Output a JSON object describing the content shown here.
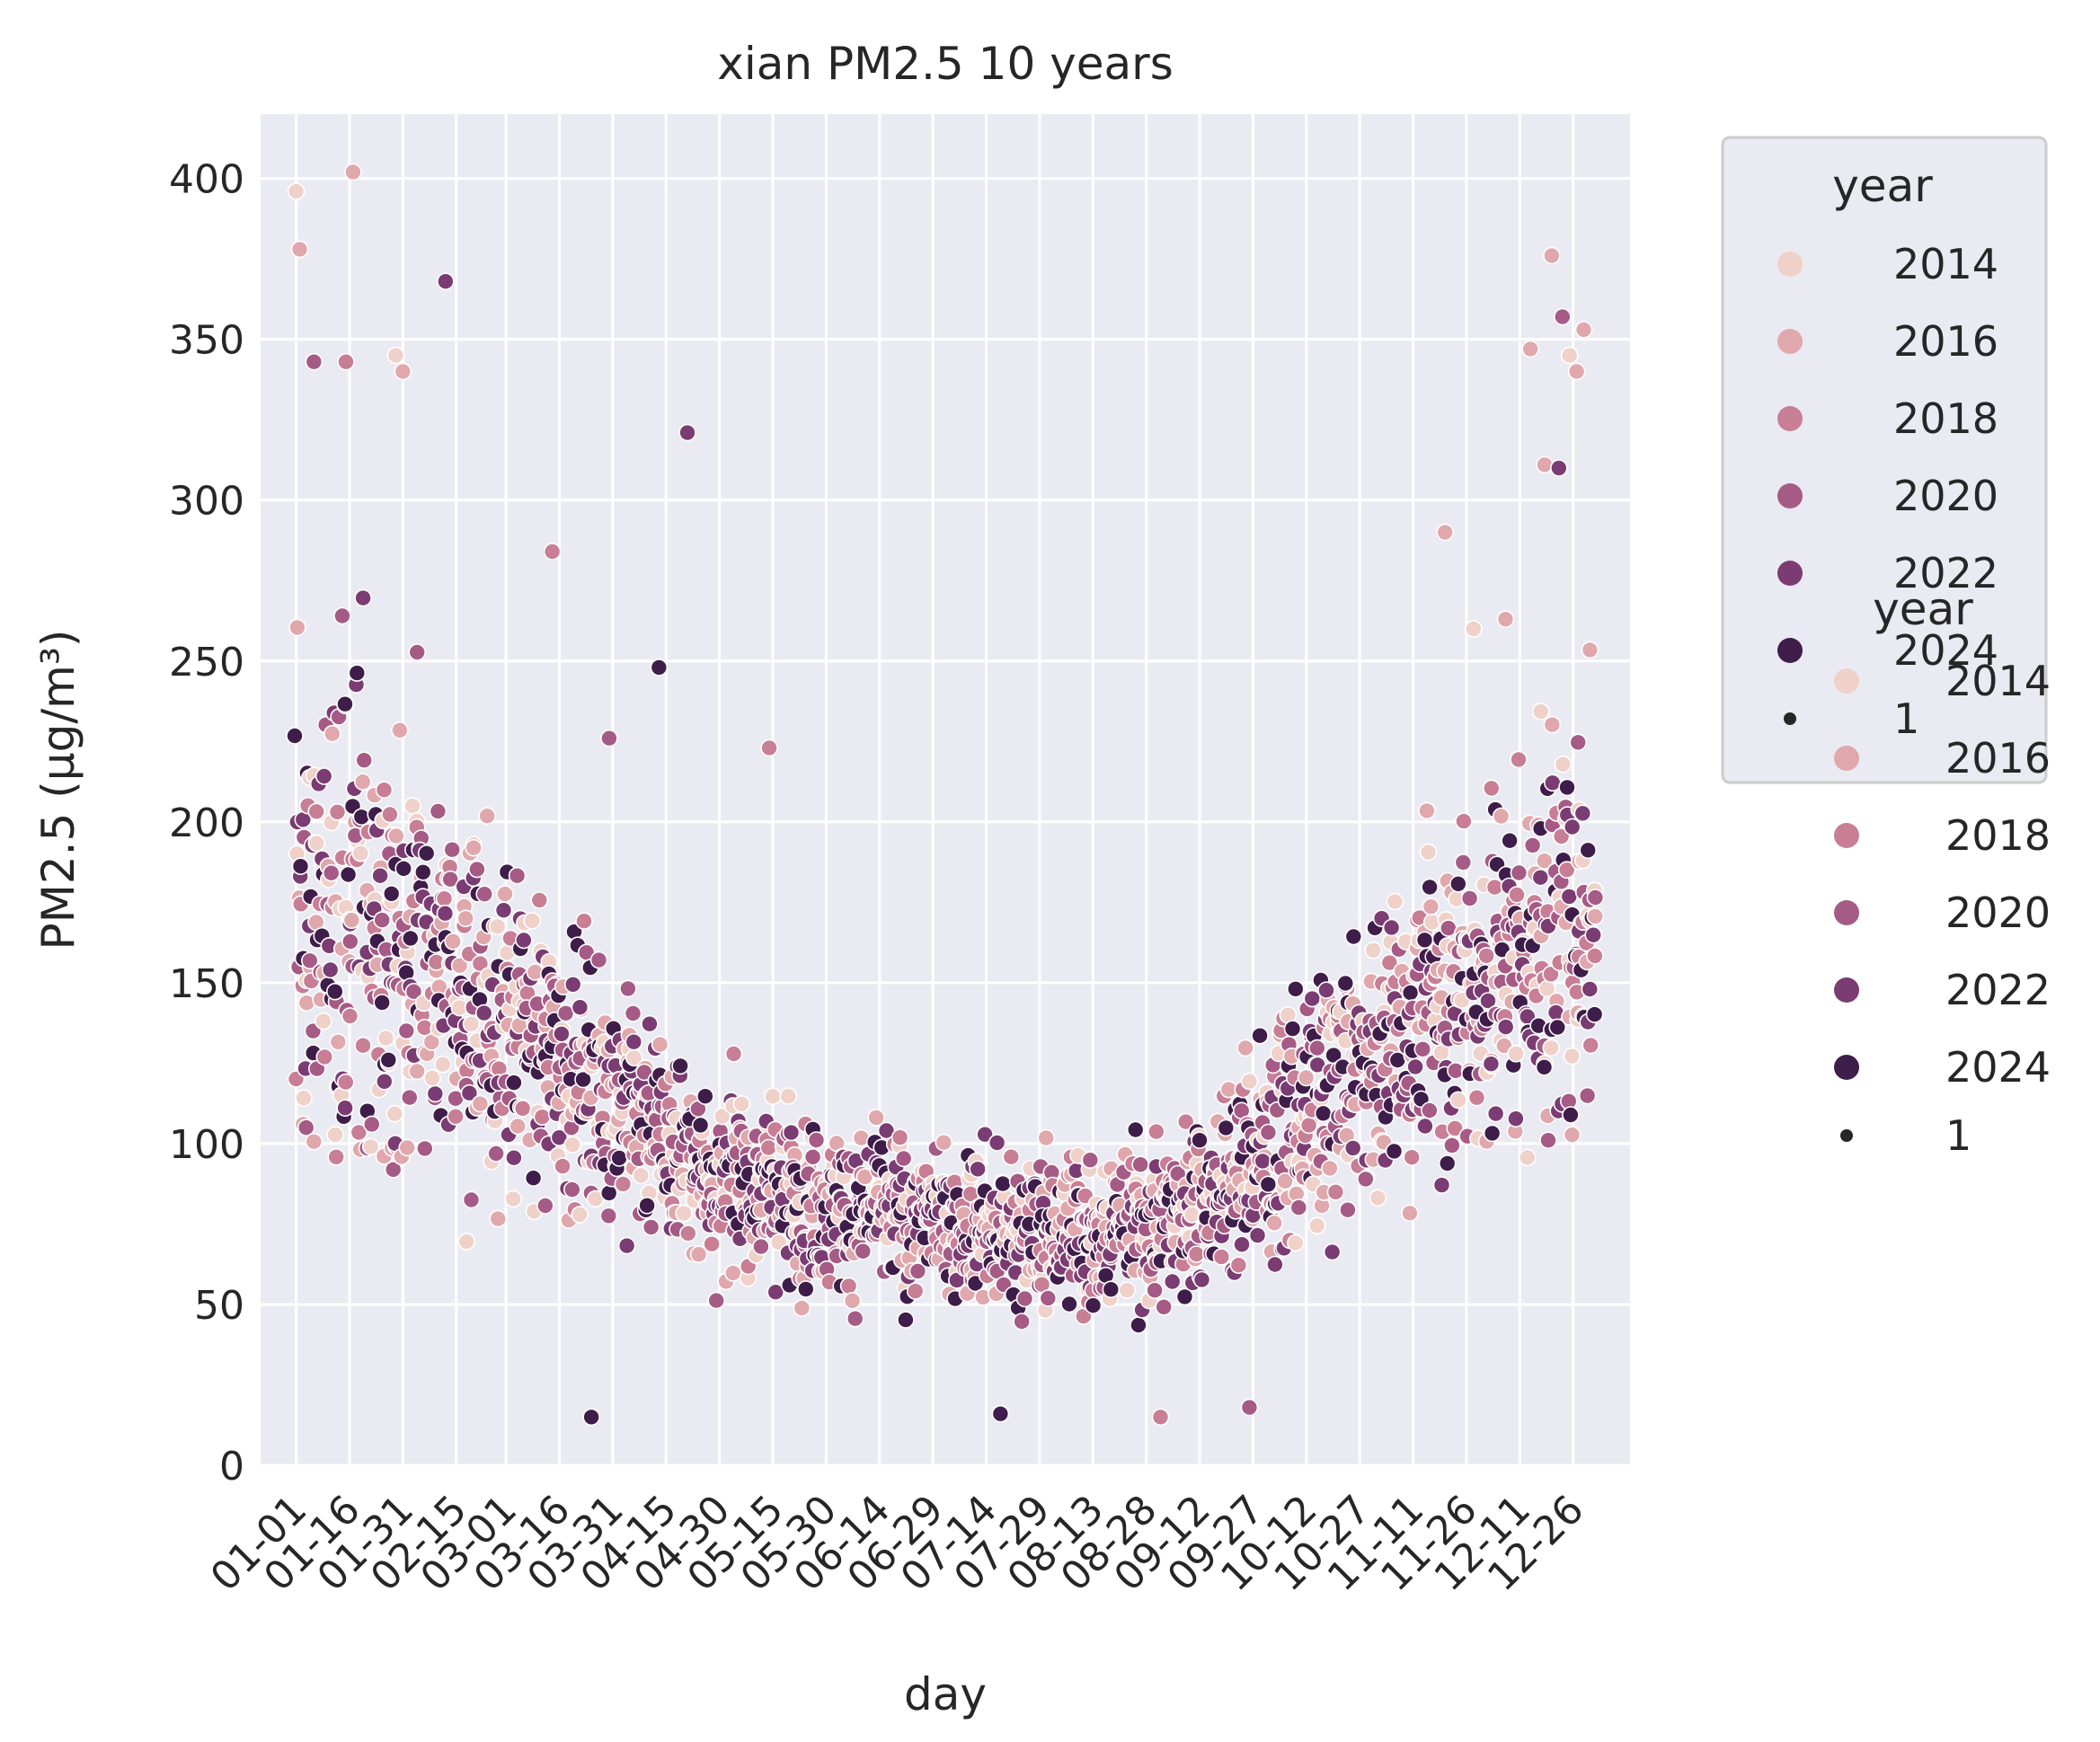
{
  "chart_data": {
    "type": "scatter",
    "title": "xian PM2.5 10 years",
    "xlabel": "day",
    "ylabel": "PM2.5 (μg/m³)",
    "xlim": [
      -10,
      375
    ],
    "ylim": [
      0,
      420
    ],
    "y_ticks": [
      0,
      50,
      100,
      150,
      200,
      250,
      300,
      350,
      400
    ],
    "x_tick_labels": [
      "01-01",
      "01-16",
      "01-31",
      "02-15",
      "03-01",
      "03-16",
      "03-31",
      "04-15",
      "04-30",
      "05-15",
      "05-30",
      "06-14",
      "06-29",
      "07-14",
      "07-29",
      "08-13",
      "08-28",
      "09-12",
      "09-27",
      "10-12",
      "10-27",
      "11-11",
      "11-26",
      "12-11",
      "12-26"
    ],
    "x_tick_days": [
      0,
      15,
      30,
      45,
      59,
      74,
      89,
      104,
      119,
      134,
      149,
      164,
      179,
      194,
      209,
      224,
      239,
      254,
      269,
      284,
      299,
      314,
      329,
      344,
      359
    ],
    "grid": true,
    "background": "#eaeaf2",
    "hue": "year",
    "series": [
      {
        "name": "2014",
        "color": "#efd1c9"
      },
      {
        "name": "2016",
        "color": "#e0a8ac"
      },
      {
        "name": "2018",
        "color": "#c87e95"
      },
      {
        "name": "2020",
        "color": "#a55b85"
      },
      {
        "name": "2022",
        "color": "#7a3c72"
      },
      {
        "name": "2024",
        "color": "#3f1d4a"
      }
    ],
    "profile_note": "",
    "mean_curve": {
      "day": [
        0,
        15,
        30,
        45,
        60,
        75,
        90,
        105,
        120,
        135,
        150,
        165,
        180,
        195,
        210,
        225,
        240,
        255,
        270,
        285,
        300,
        315,
        330,
        345,
        365
      ],
      "mean": [
        175,
        170,
        160,
        145,
        135,
        125,
        115,
        100,
        90,
        85,
        80,
        78,
        76,
        74,
        72,
        72,
        75,
        85,
        95,
        110,
        125,
        140,
        150,
        160,
        170
      ],
      "spread": [
        60,
        60,
        55,
        45,
        40,
        35,
        30,
        27,
        25,
        22,
        20,
        20,
        20,
        20,
        20,
        20,
        20,
        25,
        28,
        32,
        35,
        40,
        45,
        50,
        55
      ]
    },
    "outliers": [
      {
        "day": 0,
        "value": 396,
        "year": "2014"
      },
      {
        "day": 1,
        "value": 378,
        "year": "2016"
      },
      {
        "day": 16,
        "value": 402,
        "year": "2016"
      },
      {
        "day": 42,
        "value": 368,
        "year": "2022"
      },
      {
        "day": 5,
        "value": 343,
        "year": "2020"
      },
      {
        "day": 14,
        "value": 343,
        "year": "2018"
      },
      {
        "day": 28,
        "value": 345,
        "year": "2014"
      },
      {
        "day": 30,
        "value": 340,
        "year": "2016"
      },
      {
        "day": 110,
        "value": 321,
        "year": "2022"
      },
      {
        "day": 72,
        "value": 284,
        "year": "2018"
      },
      {
        "day": 102,
        "value": 248,
        "year": "2024"
      },
      {
        "day": 133,
        "value": 223,
        "year": "2018"
      },
      {
        "day": 88,
        "value": 226,
        "year": "2020"
      },
      {
        "day": 353,
        "value": 376,
        "year": "2016"
      },
      {
        "day": 356,
        "value": 357,
        "year": "2020"
      },
      {
        "day": 347,
        "value": 347,
        "year": "2016"
      },
      {
        "day": 362,
        "value": 353,
        "year": "2016"
      },
      {
        "day": 360,
        "value": 340,
        "year": "2016"
      },
      {
        "day": 358,
        "value": 345,
        "year": "2014"
      },
      {
        "day": 351,
        "value": 311,
        "year": "2016"
      },
      {
        "day": 355,
        "value": 310,
        "year": "2022"
      },
      {
        "day": 323,
        "value": 290,
        "year": "2016"
      },
      {
        "day": 331,
        "value": 260,
        "year": "2014"
      },
      {
        "day": 340,
        "value": 263,
        "year": "2016"
      },
      {
        "day": 83,
        "value": 15,
        "year": "2024"
      },
      {
        "day": 243,
        "value": 15,
        "year": "2018"
      },
      {
        "day": 268,
        "value": 18,
        "year": "2020"
      },
      {
        "day": 198,
        "value": 16,
        "year": "2024"
      }
    ]
  },
  "legend": {
    "title": "year",
    "entries": [
      "2014",
      "2016",
      "2018",
      "2020",
      "2022",
      "2024"
    ],
    "size_label": "1"
  },
  "legend2": {
    "title": "year",
    "entries": [
      "2014",
      "2016",
      "2018",
      "2020",
      "2022",
      "2024"
    ],
    "size_label": "1"
  }
}
